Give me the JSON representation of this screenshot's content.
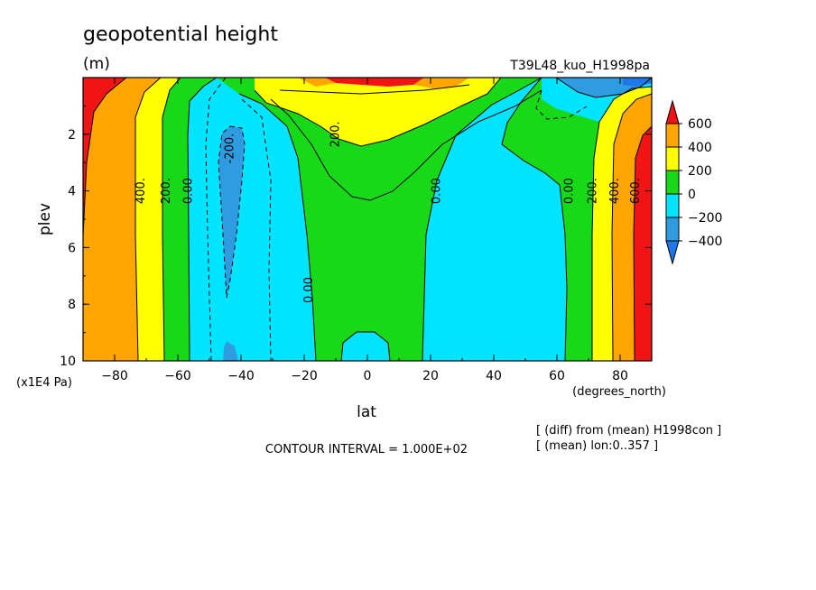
{
  "chart_data": {
    "type": "contour",
    "title": "geopotential height",
    "units": "(m)",
    "experiment": "T39L48_kuo_H1998pa",
    "xlabel": "lat",
    "xunit": "(degrees_north)",
    "ylabel": "plev",
    "yunit": "(x1E4 Pa)",
    "xlim": [
      -90,
      90
    ],
    "ylim": [
      10,
      0
    ],
    "xticks": [
      -80,
      -60,
      -40,
      -20,
      0,
      20,
      40,
      60,
      80
    ],
    "yticks": [
      2,
      4,
      6,
      8,
      10
    ],
    "contour_interval_text": "CONTOUR INTERVAL = 1.000E+02",
    "notes": [
      "[ (diff) from (mean) H1998con ]",
      "[ (mean) lon:0..357 ]"
    ],
    "colorbar": {
      "labels": [
        "600",
        "400",
        "200",
        "0",
        "−200",
        "−400"
      ],
      "levels": [
        -400,
        -200,
        0,
        200,
        400,
        600
      ],
      "colors": {
        "below_-400": "#1f77e8",
        "-400_-200": "#2f9be0",
        "-200_0": "#00e4ff",
        "0_200": "#17d917",
        "200_300": "#ffff00",
        "300_400": "#ffd700",
        "400_600": "#ffa500",
        "above_600": "#f01414"
      }
    },
    "contour_labels": [
      {
        "text": "400.",
        "lat": -71.5,
        "p": 4.0
      },
      {
        "text": "200.",
        "lat": -63.5,
        "p": 4.0
      },
      {
        "text": "0.00",
        "lat": -56.5,
        "p": 4.0
      },
      {
        "text": "-200.",
        "lat": -43.5,
        "p": 2.5
      },
      {
        "text": "200.",
        "lat": -10.0,
        "p": 2.0
      },
      {
        "text": "0.00",
        "lat": -18.5,
        "p": 7.5
      },
      {
        "text": "0.00",
        "lat": 22.0,
        "p": 4.0
      },
      {
        "text": "0.00",
        "lat": 64.0,
        "p": 4.0
      },
      {
        "text": "200.",
        "lat": 71.5,
        "p": 4.0
      },
      {
        "text": "400.",
        "lat": 78.5,
        "p": 4.0
      },
      {
        "text": "600.",
        "lat": 85.0,
        "p": 4.0
      }
    ]
  }
}
